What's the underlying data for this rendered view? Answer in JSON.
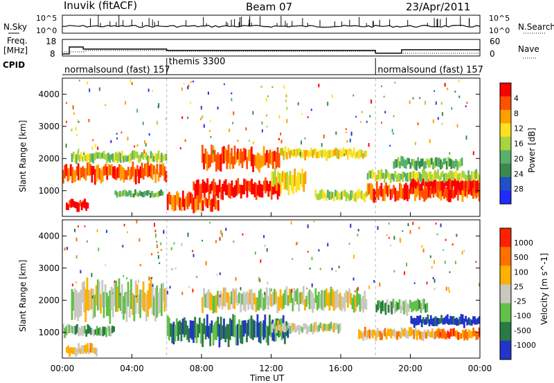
{
  "header": {
    "station": "Inuvik (fitACF)",
    "beam": "Beam 07",
    "date": "23/Apr/2011"
  },
  "noise_panel": {
    "left_label": "N.Sky",
    "right_label": "N.Search",
    "left_ticks": [
      "10^5",
      "10^0"
    ],
    "right_ticks": [
      "10^5",
      "10^0"
    ]
  },
  "freq_panel": {
    "left_label_1": "Freq.",
    "left_label_2": "[MHz]",
    "right_label": "Nave",
    "left_ticks": [
      "18",
      "8"
    ],
    "right_ticks": [
      "60",
      "0"
    ]
  },
  "cpid_panel": {
    "label": "CPID",
    "segments": [
      {
        "start_hour": 0,
        "end_hour": 6,
        "name": "normalsound (fast) 157"
      },
      {
        "start_hour": 6,
        "end_hour": 18,
        "name": "themis 3300"
      },
      {
        "start_hour": 18,
        "end_hour": 24,
        "name": "normalsound (fast) 157"
      }
    ]
  },
  "colors": {
    "power_scale": [
      "#1f2bff",
      "#2050c8",
      "#3a8a4f",
      "#58b06a",
      "#a8d43c",
      "#ffe020",
      "#ffa000",
      "#ff5000",
      "#ff0000"
    ],
    "velocity_scale": [
      "#2136c8",
      "#2a7a46",
      "#62c04a",
      "#c8c8c0",
      "#ffb000",
      "#ff7000",
      "#ff2000"
    ]
  },
  "chart_data": [
    {
      "type": "heatmap",
      "panel": "power",
      "ylabel": "Slant Range [km]",
      "ylim": [
        200,
        4500
      ],
      "yticks": [
        "1000",
        "2000",
        "3000",
        "4000"
      ],
      "xlim": [
        0,
        24
      ],
      "colorbar_label": "Power [dB]",
      "colorbar_ticks": [
        "4",
        "8",
        "12",
        "16",
        "20",
        "24",
        "28"
      ],
      "bands": [
        {
          "t0": 0.2,
          "t1": 1.5,
          "r0": 400,
          "r1": 700,
          "level": 8
        },
        {
          "t0": 0.0,
          "t1": 6.0,
          "r0": 1300,
          "r1": 1800,
          "level": 7
        },
        {
          "t0": 0.5,
          "t1": 6.0,
          "r0": 1900,
          "r1": 2200,
          "level": 4
        },
        {
          "t0": 3.0,
          "t1": 5.8,
          "r0": 800,
          "r1": 1000,
          "level": 3
        },
        {
          "t0": 6.0,
          "t1": 9.0,
          "r0": 400,
          "r1": 900,
          "level": 7
        },
        {
          "t0": 7.5,
          "t1": 12.5,
          "r0": 800,
          "r1": 1300,
          "level": 8
        },
        {
          "t0": 8.0,
          "t1": 12.5,
          "r0": 1700,
          "r1": 2300,
          "level": 7
        },
        {
          "t0": 12.5,
          "t1": 17.5,
          "r0": 2000,
          "r1": 2300,
          "level": 5
        },
        {
          "t0": 12.0,
          "t1": 14.0,
          "r0": 1000,
          "r1": 1600,
          "level": 5
        },
        {
          "t0": 14.5,
          "t1": 17.5,
          "r0": 700,
          "r1": 1000,
          "level": 4
        },
        {
          "t0": 17.5,
          "t1": 24.0,
          "r0": 700,
          "r1": 1200,
          "level": 7
        },
        {
          "t0": 20.0,
          "t1": 24.0,
          "r0": 1000,
          "r1": 1400,
          "level": 8
        },
        {
          "t0": 17.5,
          "t1": 24.0,
          "r0": 1300,
          "r1": 1600,
          "level": 4
        },
        {
          "t0": 19.0,
          "t1": 23.0,
          "r0": 1700,
          "r1": 2000,
          "level": 3
        }
      ]
    },
    {
      "type": "heatmap",
      "panel": "velocity",
      "ylabel": "Slant Range [km]",
      "ylim": [
        200,
        4500
      ],
      "yticks": [
        "1000",
        "2000",
        "3000",
        "4000"
      ],
      "xlim": [
        0,
        24
      ],
      "xlabel": "Time UT",
      "xticks": [
        "00:00",
        "04:00",
        "08:00",
        "12:00",
        "16:00",
        "20:00",
        "00:00"
      ],
      "colorbar_label": "Velocity [m s^-1]",
      "colorbar_ticks": [
        "1000",
        "500",
        "100",
        "25",
        "-25",
        "-100",
        "-500",
        "-1000"
      ],
      "bands": [
        {
          "t0": 0.2,
          "t1": 2.0,
          "r0": 300,
          "r1": 600,
          "level": 4
        },
        {
          "t0": 0.5,
          "t1": 6.0,
          "r0": 1500,
          "r1": 2500,
          "level": 3
        },
        {
          "t0": 0.0,
          "t1": 3.0,
          "r0": 900,
          "r1": 1200,
          "level": 2
        },
        {
          "t0": 6.0,
          "t1": 13.0,
          "r0": 700,
          "r1": 1400,
          "level": 1
        },
        {
          "t0": 8.0,
          "t1": 17.5,
          "r0": 1700,
          "r1": 2300,
          "level": 3
        },
        {
          "t0": 12.0,
          "t1": 16.0,
          "r0": 1000,
          "r1": 1300,
          "level": 3
        },
        {
          "t0": 17.0,
          "t1": 22.0,
          "r0": 800,
          "r1": 1100,
          "level": 4
        },
        {
          "t0": 20.0,
          "t1": 24.0,
          "r0": 1200,
          "r1": 1500,
          "level": 0
        },
        {
          "t0": 21.5,
          "t1": 24.0,
          "r0": 800,
          "r1": 1100,
          "level": 5
        },
        {
          "t0": 18.0,
          "t1": 21.0,
          "r0": 1600,
          "r1": 2000,
          "level": 2
        }
      ]
    }
  ]
}
